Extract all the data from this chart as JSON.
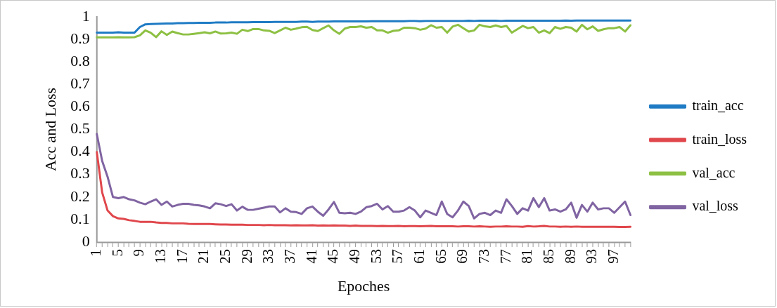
{
  "chart_data": {
    "type": "line",
    "xlabel": "Epoches",
    "ylabel": "Acc and Loss",
    "categories": [
      "1",
      null,
      null,
      null,
      "5",
      null,
      null,
      null,
      "9",
      null,
      null,
      null,
      "13",
      null,
      null,
      null,
      "17",
      null,
      null,
      null,
      "21",
      null,
      null,
      null,
      "25",
      null,
      null,
      null,
      "29",
      null,
      null,
      null,
      "33",
      null,
      null,
      null,
      "37",
      null,
      null,
      null,
      "41",
      null,
      null,
      null,
      "45",
      null,
      null,
      null,
      "49",
      null,
      null,
      null,
      "53",
      null,
      null,
      null,
      "57",
      null,
      null,
      null,
      "61",
      null,
      null,
      null,
      "65",
      null,
      null,
      null,
      "69",
      null,
      null,
      null,
      "73",
      null,
      null,
      null,
      "77",
      null,
      null,
      null,
      "81",
      null,
      null,
      null,
      "85",
      null,
      null,
      null,
      "89",
      null,
      null,
      null,
      "93",
      null,
      null,
      null,
      "97",
      null,
      null,
      null
    ],
    "ylim": [
      0,
      1
    ],
    "yticks": [
      0,
      {
        "value": 0.1,
        "label": "0.1"
      },
      {
        "value": 0.2,
        "label": "0.2"
      },
      {
        "value": 0.3,
        "label": "0.3"
      },
      {
        "value": 0.4,
        "label": "0.4"
      },
      {
        "value": 0.5,
        "label": "0.5"
      },
      {
        "value": 0.6,
        "label": "0.6"
      },
      {
        "value": 0.7,
        "label": "0.7"
      },
      {
        "value": 0.8,
        "label": "0.8"
      },
      {
        "value": 0.9,
        "label": "0.9"
      },
      1
    ],
    "grid": false,
    "legend": "right",
    "marker": "none",
    "line_style": "solid",
    "series": [
      {
        "name": "train_acc",
        "color": "#1f7bc4",
        "values": [
          0.93,
          0.93,
          0.93,
          0.93,
          0.932,
          0.93,
          0.93,
          0.93,
          0.955,
          0.967,
          0.968,
          0.969,
          0.97,
          0.971,
          0.971,
          0.972,
          0.972,
          0.973,
          0.973,
          0.974,
          0.974,
          0.974,
          0.975,
          0.975,
          0.975,
          0.976,
          0.976,
          0.976,
          0.976,
          0.977,
          0.977,
          0.977,
          0.977,
          0.978,
          0.978,
          0.978,
          0.978,
          0.978,
          0.979,
          0.979,
          0.978,
          0.979,
          0.979,
          0.979,
          0.98,
          0.98,
          0.98,
          0.98,
          0.98,
          0.98,
          0.98,
          0.981,
          0.981,
          0.981,
          0.981,
          0.981,
          0.981,
          0.981,
          0.982,
          0.982,
          0.981,
          0.982,
          0.982,
          0.982,
          0.982,
          0.982,
          0.982,
          0.982,
          0.982,
          0.983,
          0.982,
          0.983,
          0.983,
          0.983,
          0.983,
          0.982,
          0.983,
          0.983,
          0.983,
          0.983,
          0.983,
          0.983,
          0.983,
          0.983,
          0.983,
          0.983,
          0.983,
          0.984,
          0.983,
          0.984,
          0.984,
          0.984,
          0.984,
          0.984,
          0.984,
          0.984,
          0.984,
          0.984,
          0.984,
          0.984
        ]
      },
      {
        "name": "train_loss",
        "color": "#e0474c",
        "values": [
          0.4,
          0.22,
          0.14,
          0.115,
          0.105,
          0.103,
          0.097,
          0.094,
          0.09,
          0.09,
          0.09,
          0.087,
          0.085,
          0.085,
          0.083,
          0.083,
          0.083,
          0.081,
          0.08,
          0.08,
          0.08,
          0.08,
          0.079,
          0.078,
          0.078,
          0.077,
          0.077,
          0.077,
          0.076,
          0.076,
          0.076,
          0.075,
          0.076,
          0.075,
          0.075,
          0.075,
          0.074,
          0.075,
          0.074,
          0.074,
          0.075,
          0.073,
          0.074,
          0.073,
          0.074,
          0.073,
          0.073,
          0.072,
          0.073,
          0.072,
          0.072,
          0.072,
          0.071,
          0.072,
          0.071,
          0.071,
          0.072,
          0.07,
          0.071,
          0.071,
          0.07,
          0.071,
          0.072,
          0.07,
          0.07,
          0.07,
          0.07,
          0.069,
          0.07,
          0.07,
          0.069,
          0.07,
          0.069,
          0.068,
          0.069,
          0.069,
          0.07,
          0.069,
          0.069,
          0.068,
          0.071,
          0.069,
          0.07,
          0.072,
          0.069,
          0.069,
          0.068,
          0.069,
          0.068,
          0.069,
          0.068,
          0.068,
          0.068,
          0.068,
          0.068,
          0.068,
          0.068,
          0.067,
          0.067,
          0.068
        ]
      },
      {
        "name": "val_acc",
        "color": "#8dc043",
        "values": [
          0.909,
          0.909,
          0.909,
          0.909,
          0.91,
          0.909,
          0.909,
          0.91,
          0.918,
          0.94,
          0.93,
          0.91,
          0.936,
          0.92,
          0.935,
          0.928,
          0.922,
          0.922,
          0.925,
          0.928,
          0.932,
          0.927,
          0.935,
          0.926,
          0.927,
          0.93,
          0.925,
          0.943,
          0.937,
          0.946,
          0.946,
          0.94,
          0.938,
          0.928,
          0.94,
          0.952,
          0.943,
          0.948,
          0.954,
          0.956,
          0.942,
          0.937,
          0.95,
          0.962,
          0.94,
          0.925,
          0.948,
          0.955,
          0.955,
          0.958,
          0.952,
          0.955,
          0.94,
          0.94,
          0.93,
          0.938,
          0.94,
          0.952,
          0.952,
          0.95,
          0.943,
          0.948,
          0.963,
          0.952,
          0.955,
          0.93,
          0.957,
          0.965,
          0.95,
          0.935,
          0.94,
          0.965,
          0.958,
          0.955,
          0.962,
          0.955,
          0.96,
          0.93,
          0.945,
          0.96,
          0.95,
          0.955,
          0.93,
          0.94,
          0.928,
          0.955,
          0.947,
          0.955,
          0.952,
          0.935,
          0.965,
          0.945,
          0.958,
          0.938,
          0.945,
          0.95,
          0.95,
          0.955,
          0.935,
          0.963
        ]
      },
      {
        "name": "val_loss",
        "color": "#8064a2",
        "values": [
          0.48,
          0.36,
          0.29,
          0.2,
          0.195,
          0.2,
          0.19,
          0.185,
          0.175,
          0.168,
          0.18,
          0.19,
          0.165,
          0.18,
          0.158,
          0.165,
          0.17,
          0.17,
          0.165,
          0.163,
          0.158,
          0.15,
          0.172,
          0.168,
          0.16,
          0.168,
          0.14,
          0.157,
          0.143,
          0.143,
          0.148,
          0.153,
          0.158,
          0.158,
          0.132,
          0.15,
          0.135,
          0.133,
          0.125,
          0.15,
          0.158,
          0.135,
          0.117,
          0.145,
          0.178,
          0.13,
          0.128,
          0.13,
          0.125,
          0.135,
          0.155,
          0.16,
          0.17,
          0.145,
          0.16,
          0.135,
          0.135,
          0.14,
          0.155,
          0.14,
          0.11,
          0.14,
          0.13,
          0.12,
          0.18,
          0.125,
          0.11,
          0.14,
          0.18,
          0.16,
          0.105,
          0.125,
          0.13,
          0.12,
          0.14,
          0.13,
          0.19,
          0.16,
          0.125,
          0.15,
          0.14,
          0.195,
          0.155,
          0.195,
          0.14,
          0.145,
          0.135,
          0.145,
          0.175,
          0.108,
          0.165,
          0.135,
          0.175,
          0.145,
          0.15,
          0.15,
          0.13,
          0.155,
          0.18,
          0.12
        ]
      }
    ]
  }
}
